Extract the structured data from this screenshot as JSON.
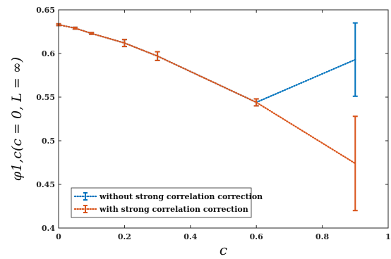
{
  "chart_data": {
    "type": "line",
    "title": "",
    "xlabel": "c",
    "ylabel": "φ1,c(c = 0, L = ∞)",
    "xlim": [
      0,
      1
    ],
    "ylim": [
      0.4,
      0.65
    ],
    "xticks": [
      0,
      0.2,
      0.4,
      0.6,
      0.8,
      1
    ],
    "yticks": [
      0.4,
      0.45,
      0.5,
      0.55,
      0.6,
      0.65
    ],
    "xtick_labels": [
      "0",
      "0.2",
      "0.4",
      "0.6",
      "0.8",
      "1"
    ],
    "ytick_labels": [
      "0.4",
      "0.45",
      "0.5",
      "0.55",
      "0.6",
      "0.65"
    ],
    "grid": false,
    "legend_position": "bottom-left",
    "series": [
      {
        "name": "without strong correlation correction",
        "color": "#0072BD",
        "line_style": "dotted",
        "x": [
          0,
          0.05,
          0.1,
          0.2,
          0.3,
          0.6,
          0.9
        ],
        "y": [
          0.633,
          0.629,
          0.623,
          0.612,
          0.597,
          0.544,
          0.593
        ],
        "err": [
          0.001,
          0.001,
          0.001,
          0.004,
          0.005,
          0.004,
          0.042
        ]
      },
      {
        "name": "with strong correlation correction",
        "color": "#D95319",
        "line_style": "dotted",
        "x": [
          0,
          0.05,
          0.1,
          0.2,
          0.3,
          0.6,
          0.9
        ],
        "y": [
          0.633,
          0.629,
          0.623,
          0.612,
          0.597,
          0.544,
          0.474
        ],
        "err": [
          0.001,
          0.001,
          0.001,
          0.004,
          0.005,
          0.004,
          0.054
        ]
      }
    ]
  }
}
